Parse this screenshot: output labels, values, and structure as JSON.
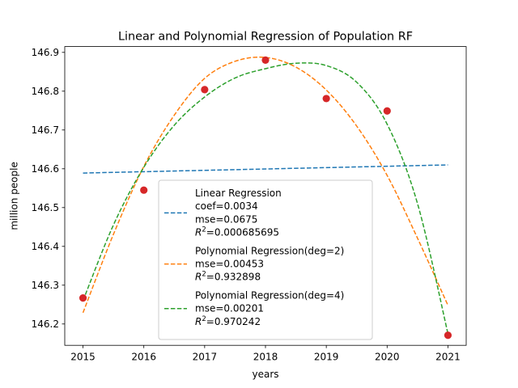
{
  "chart_data": {
    "type": "line",
    "title": "Linear and Polynomial Regression of Population RF",
    "xlabel": "years",
    "ylabel": "million people",
    "xlim": [
      2014.7,
      2021.3
    ],
    "ylim": [
      146.145,
      146.915
    ],
    "x_ticks": [
      "2015",
      "2016",
      "2017",
      "2018",
      "2019",
      "2020",
      "2021"
    ],
    "y_ticks": [
      "146.2",
      "146.3",
      "146.4",
      "146.5",
      "146.6",
      "146.7",
      "146.8",
      "146.9"
    ],
    "grid": false,
    "legend_position": "lower-center",
    "points": {
      "color": "#d62728",
      "x": [
        2015,
        2016,
        2017,
        2018,
        2019,
        2020,
        2021
      ],
      "y": [
        146.267,
        146.545,
        146.804,
        146.88,
        146.781,
        146.749,
        146.171
      ]
    },
    "series": [
      {
        "id": "linear",
        "color": "#1f77b4",
        "style": "dashed",
        "legend_lines": [
          "Linear Regression",
          "coef=0.0034",
          "mse=0.0675",
          "R^2=0.000685695"
        ],
        "x": [
          2015,
          2021
        ],
        "y": [
          146.589,
          146.61
        ]
      },
      {
        "id": "poly2",
        "color": "#ff7f0e",
        "style": "dashed",
        "legend_lines": [
          "Polynomial Regression(deg=2)",
          "mse=0.00453",
          "R^2=0.932898"
        ],
        "x": [
          2015,
          2015.5,
          2016,
          2016.5,
          2017,
          2017.5,
          2018,
          2018.5,
          2019,
          2019.5,
          2020,
          2020.5,
          2021
        ],
        "y": [
          146.229,
          146.431,
          146.606,
          146.738,
          146.833,
          146.877,
          146.887,
          146.862,
          146.803,
          146.71,
          146.583,
          146.421,
          146.248
        ]
      },
      {
        "id": "poly4",
        "color": "#2ca02c",
        "style": "dashed",
        "legend_lines": [
          "Polynomial Regression(deg=4)",
          "mse=0.00201",
          "R^2=0.970242"
        ],
        "x": [
          2015,
          2015.5,
          2016,
          2016.5,
          2017,
          2017.5,
          2018,
          2018.5,
          2019,
          2019.5,
          2020,
          2020.5,
          2021
        ],
        "y": [
          146.26,
          146.455,
          146.604,
          146.712,
          146.785,
          146.834,
          146.858,
          146.872,
          146.866,
          146.823,
          146.715,
          146.51,
          146.175
        ]
      }
    ]
  }
}
